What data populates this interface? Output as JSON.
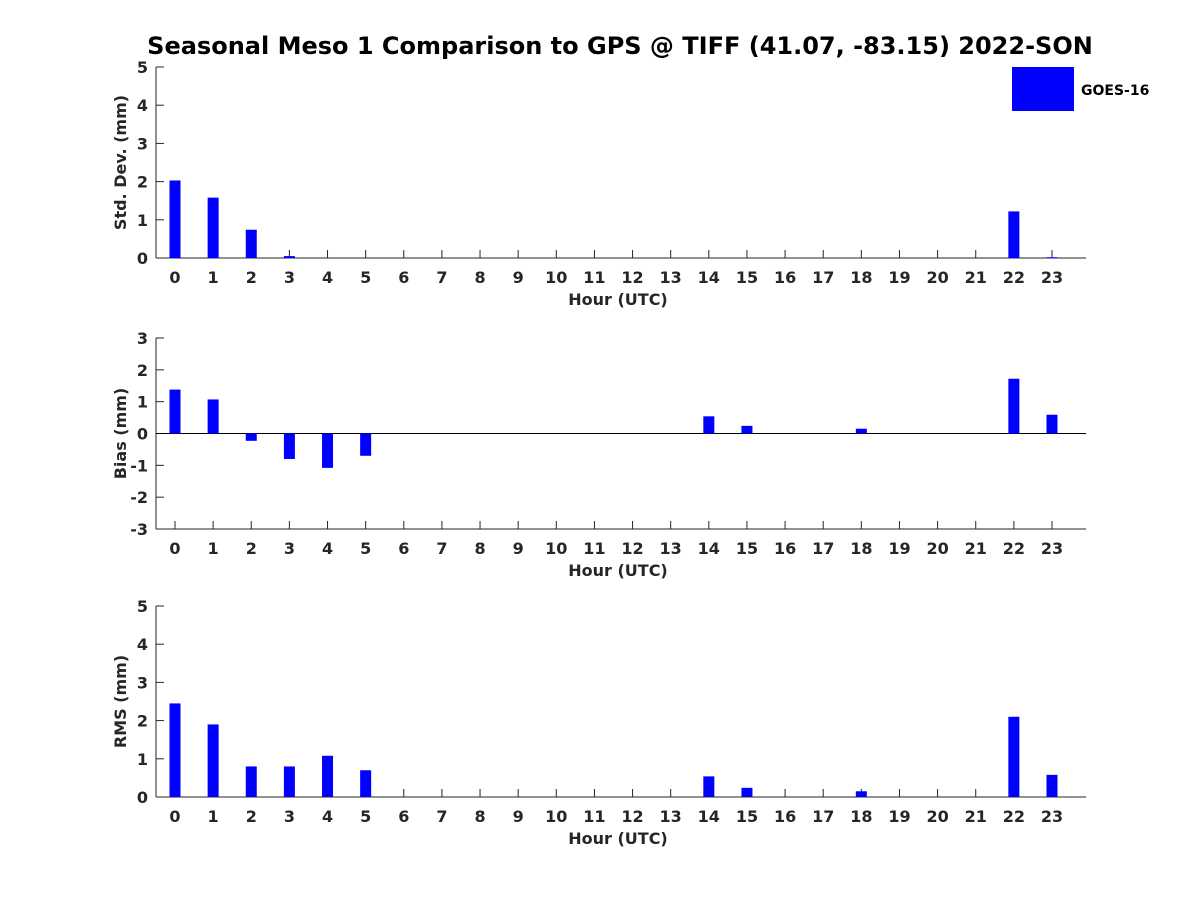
{
  "title": "Seasonal Meso 1 Comparison to GPS @ TIFF (41.07, -83.15) 2022-SON",
  "legend": {
    "label": "GOES-16",
    "color": "#0000ff"
  },
  "chart_data": [
    {
      "type": "bar",
      "title": "Seasonal Meso 1 Comparison to GPS @ TIFF (41.07, -83.15) 2022-SON",
      "xlabel": "Hour (UTC)",
      "ylabel": "Std. Dev. (mm)",
      "ylim": [
        0,
        5
      ],
      "yticks": [
        0,
        1,
        2,
        3,
        4,
        5
      ],
      "categories": [
        "0",
        "1",
        "2",
        "3",
        "4",
        "5",
        "6",
        "7",
        "8",
        "9",
        "10",
        "11",
        "12",
        "13",
        "14",
        "15",
        "16",
        "17",
        "18",
        "19",
        "20",
        "21",
        "22",
        "23"
      ],
      "series": [
        {
          "name": "GOES-16",
          "color": "#0000ff",
          "values": [
            2.03,
            1.58,
            0.74,
            0.05,
            0,
            0,
            0,
            0,
            0,
            0,
            0,
            0,
            0,
            0,
            0,
            0,
            0,
            0,
            0,
            0,
            0,
            0,
            1.22,
            0.02
          ]
        }
      ],
      "legend": "top-right"
    },
    {
      "type": "bar",
      "xlabel": "Hour (UTC)",
      "ylabel": "Bias (mm)",
      "ylim": [
        -3,
        3
      ],
      "yticks": [
        -3,
        -2,
        -1,
        0,
        1,
        2,
        3
      ],
      "zero_line": true,
      "categories": [
        "0",
        "1",
        "2",
        "3",
        "4",
        "5",
        "6",
        "7",
        "8",
        "9",
        "10",
        "11",
        "12",
        "13",
        "14",
        "15",
        "16",
        "17",
        "18",
        "19",
        "20",
        "21",
        "22",
        "23"
      ],
      "series": [
        {
          "name": "GOES-16",
          "color": "#0000ff",
          "values": [
            1.38,
            1.07,
            -0.23,
            -0.8,
            -1.08,
            -0.7,
            0,
            0,
            0,
            0,
            0,
            0,
            0,
            0,
            0.54,
            0.24,
            0,
            0,
            0.15,
            0,
            0,
            0,
            1.72,
            0.59
          ]
        }
      ]
    },
    {
      "type": "bar",
      "xlabel": "Hour (UTC)",
      "ylabel": "RMS (mm)",
      "ylim": [
        0,
        5
      ],
      "yticks": [
        0,
        1,
        2,
        3,
        4,
        5
      ],
      "categories": [
        "0",
        "1",
        "2",
        "3",
        "4",
        "5",
        "6",
        "7",
        "8",
        "9",
        "10",
        "11",
        "12",
        "13",
        "14",
        "15",
        "16",
        "17",
        "18",
        "19",
        "20",
        "21",
        "22",
        "23"
      ],
      "series": [
        {
          "name": "GOES-16",
          "color": "#0000ff",
          "values": [
            2.45,
            1.9,
            0.8,
            0.8,
            1.08,
            0.7,
            0,
            0,
            0,
            0,
            0,
            0,
            0,
            0,
            0.54,
            0.24,
            0,
            0,
            0.15,
            0,
            0,
            0,
            2.1,
            0.58
          ]
        }
      ]
    }
  ]
}
